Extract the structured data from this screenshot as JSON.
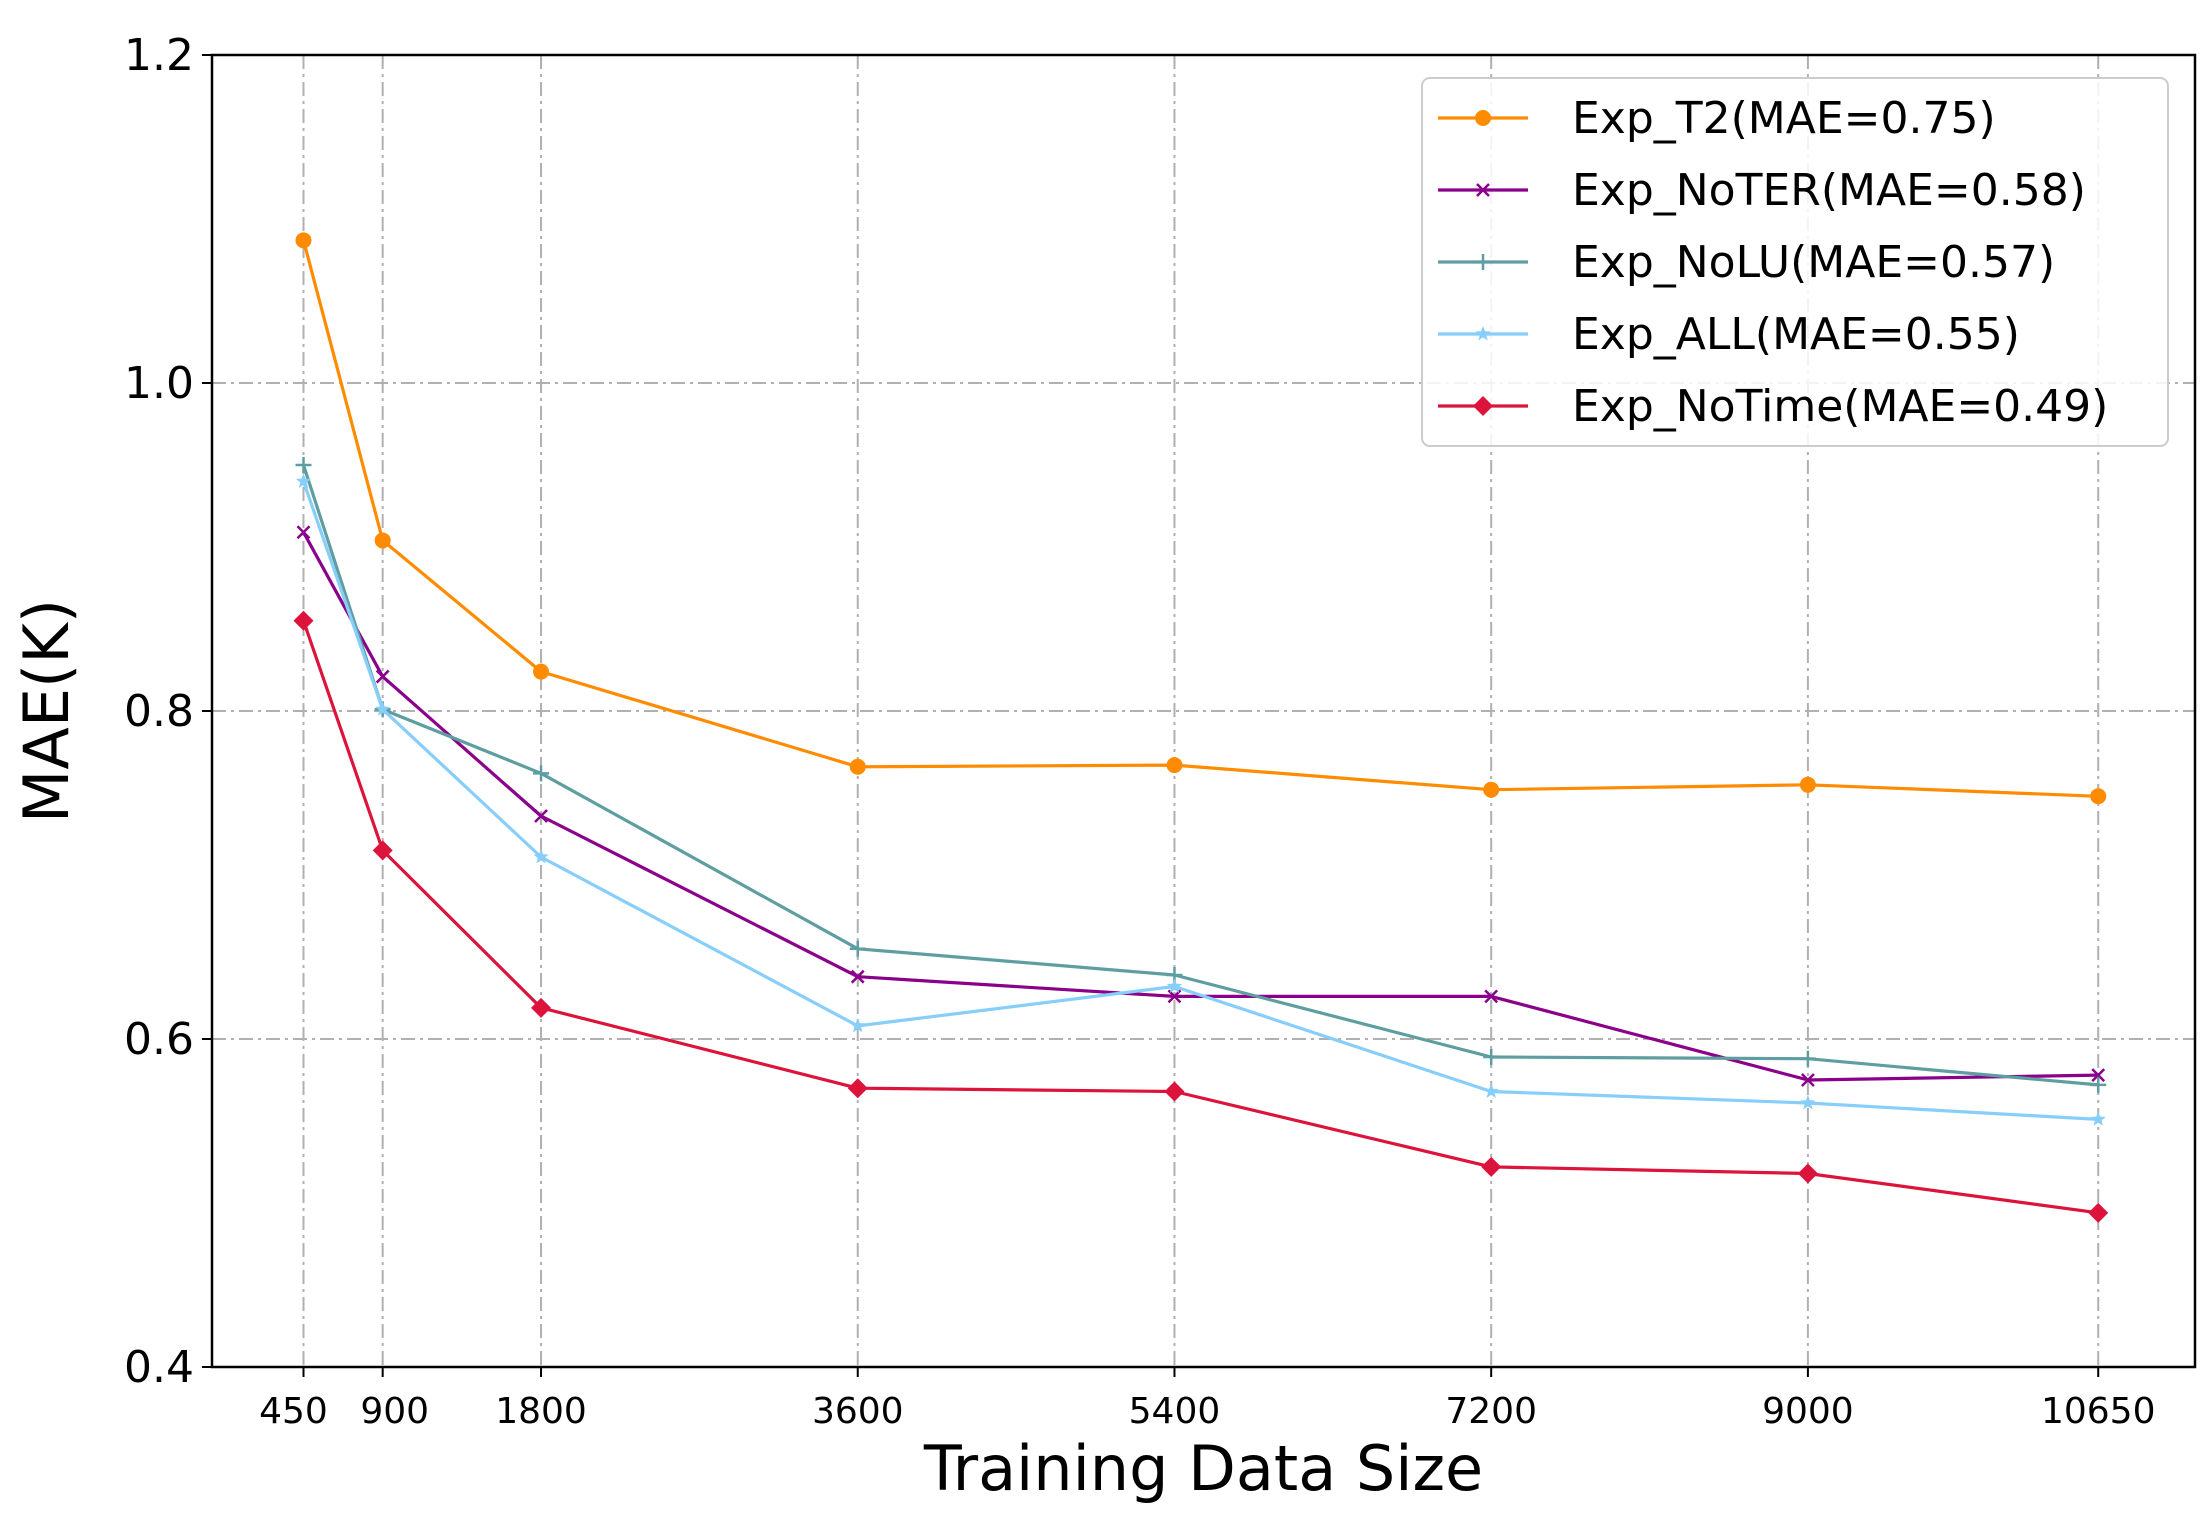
{
  "chart_data": {
    "type": "line",
    "title": "",
    "xlabel": "Training Data Size",
    "ylabel": "MAE(K)",
    "x": [
      450,
      900,
      1800,
      3600,
      5400,
      7200,
      9000,
      10650
    ],
    "xtick_labels": [
      "450",
      "900",
      "1800",
      "3600",
      "5400",
      "7200",
      "9000",
      "10650"
    ],
    "yticks": [
      0.4,
      0.6,
      0.8,
      1.0,
      1.2
    ],
    "ytick_labels": [
      "0.4",
      "0.6",
      "0.8",
      "1.0",
      "1.2"
    ],
    "xlim": [
      -70,
      11200
    ],
    "ylim": [
      0.4,
      1.2
    ],
    "grid": true,
    "legend_position": "top-right",
    "series": [
      {
        "name": "Exp_T2(MAE=0.75)",
        "color": "#ff8c00",
        "marker": "circle",
        "values": [
          1.087,
          0.904,
          0.824,
          0.766,
          0.767,
          0.752,
          0.755,
          0.748
        ]
      },
      {
        "name": "Exp_NoTER(MAE=0.58)",
        "color": "#8b008b",
        "marker": "x",
        "values": [
          0.909,
          0.821,
          0.736,
          0.638,
          0.626,
          0.626,
          0.575,
          0.578
        ]
      },
      {
        "name": "Exp_NoLU(MAE=0.57)",
        "color": "#5f9ea0",
        "marker": "plus",
        "values": [
          0.95,
          0.801,
          0.762,
          0.655,
          0.639,
          0.589,
          0.588,
          0.572
        ]
      },
      {
        "name": "Exp_ALL(MAE=0.55)",
        "color": "#87cefa",
        "marker": "star",
        "values": [
          0.94,
          0.801,
          0.711,
          0.608,
          0.632,
          0.568,
          0.561,
          0.551
        ]
      },
      {
        "name": "Exp_NoTime(MAE=0.49)",
        "color": "#dc143c",
        "marker": "diamond",
        "values": [
          0.855,
          0.715,
          0.619,
          0.57,
          0.568,
          0.522,
          0.518,
          0.494
        ]
      }
    ]
  }
}
